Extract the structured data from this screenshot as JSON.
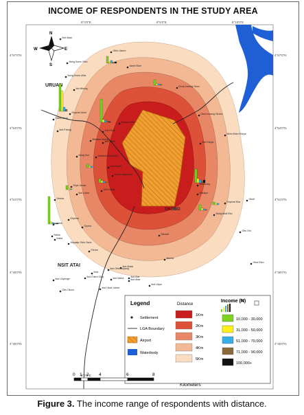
{
  "title": "INCOME OF RESPONDENTS IN THE STUDY AREA",
  "caption": {
    "label": "Figure 3.",
    "text": " The income range of respondents with distance."
  },
  "compass": {
    "n": "N",
    "s": "S",
    "e": "E",
    "w": "W"
  },
  "regions": {
    "uruan": "URUAN",
    "nsit_atai": "NSIT ATAI",
    "okobo": "OKOBO"
  },
  "grid_labels": {
    "top": [
      "8°0'0\"E",
      "8°5'0\"E",
      "8°10'0\"E"
    ],
    "bottom": [
      "8°0'0\"E",
      "8°5'0\"E",
      "8°10'0\"E"
    ],
    "left": [
      "4°57'0\"N",
      "4°54'0\"N",
      "4°51'0\"N",
      "4°48'0\"N",
      "4°45'0\"N"
    ],
    "right": [
      "4°57'0\"N",
      "4°54'0\"N",
      "4°51'0\"N",
      "4°48'0\"N",
      "4°45'0\"N"
    ]
  },
  "settlements": [
    "Ikot Akan",
    "Obio Usiere",
    "Nung Ikono Obio",
    "Ishiet Ekim",
    "Nung Ikono Ufok",
    "Idu Mbong",
    "Esuk Inwang Okon",
    "Ekpene Ukim",
    "Mbiaso Ekim",
    "Obot Inwang Okobo",
    "Edem Urua",
    "Ikot Edong",
    "Ikot Ebok",
    "Mbiabet Idiong",
    "Nung Ikot",
    "Ikot Nkim",
    "Nkim Ekim Ekeya",
    "Mbiaikot Ikot Nkim",
    "Ikot Akpan",
    "Ikot Ekeya",
    "Eweke Akpainak",
    "Ekpe Uruan",
    "Mbiakong",
    "Ikot Udua",
    "Obot Ifang",
    "Idaukpe",
    "Ekpene Eka",
    "Nung Abat Eka",
    "Uboka",
    "Ekpena",
    "Obufi",
    "Udeke",
    "Oyobo",
    "Ibaka",
    "Okoedi",
    "Ndisa",
    "Obo Oro",
    "Eleroe",
    "Akpasip Obio Osoh",
    "Itimnta",
    "Ibok",
    "Ikot Abasi",
    "Ikot Obio Akpang",
    "Ikot Idaha",
    "Ikot Abia",
    "Ikot Unyenge",
    "Ikot Edem Obio",
    "Ikot Ukpa",
    "Ikot Ukok Udom",
    "Oku Okoro",
    "Ikot Atai",
    "Obot Etim"
  ],
  "legend": {
    "title": "Legend",
    "settlement": "Settlement",
    "lga_boundary": "LGA Boundary",
    "airport": "Airport",
    "waterbody": "Waterbody",
    "distance_title": "Distance",
    "income_title": "Income (₦)",
    "distance_items": [
      {
        "label": "1Km",
        "color": "#c91d1d"
      },
      {
        "label": "2Km",
        "color": "#dc5138"
      },
      {
        "label": "3Km",
        "color": "#e88766"
      },
      {
        "label": "4Km",
        "color": "#f3b995"
      },
      {
        "label": "5Km",
        "color": "#fadcc1"
      }
    ],
    "income_items": [
      {
        "label": "10,000 - 30,000",
        "color": "#7ed321"
      },
      {
        "label": "31,000 - 50,000",
        "color": "#ffef1a"
      },
      {
        "label": "51,000 - 70,000",
        "color": "#3aaee6"
      },
      {
        "label": "71,000 - 90,000",
        "color": "#8a6a3a"
      },
      {
        "label": "100,000+",
        "color": "#111111"
      }
    ]
  },
  "scalebar": {
    "ticks": [
      "0",
      "1",
      "2",
      "4",
      "6",
      "8"
    ],
    "unit": "Kilometers"
  },
  "colors": {
    "airport": "#f0a030",
    "river": "#1e5fd6",
    "boundary": "#222222"
  }
}
